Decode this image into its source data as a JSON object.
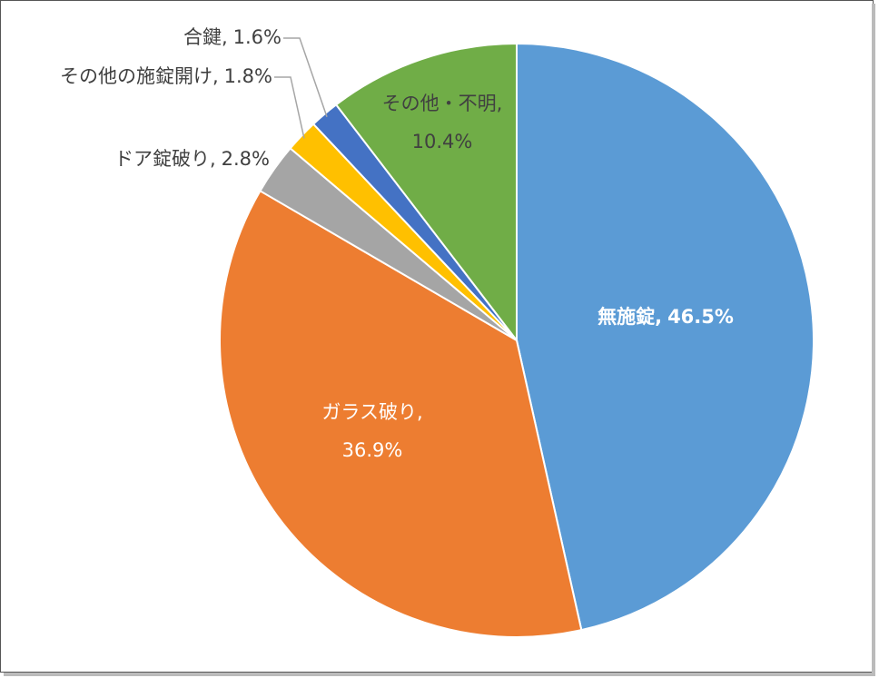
{
  "chart_data": {
    "type": "pie",
    "categories": [
      "無施錠,",
      "ガラス破り,",
      "ドア錠破り,",
      "その他の施錠開け,",
      "合鍵,",
      "その他・不明,"
    ],
    "values": [
      46.5,
      36.9,
      2.8,
      1.8,
      1.6,
      10.4
    ],
    "value_labels": [
      "46.5%",
      "36.9%",
      "2.8%",
      "1.8%",
      "1.6%",
      "10.4%"
    ],
    "colors": [
      "#5b9bd5",
      "#ed7d31",
      "#a5a5a5",
      "#ffc000",
      "#4472c4",
      "#70ad47"
    ]
  }
}
